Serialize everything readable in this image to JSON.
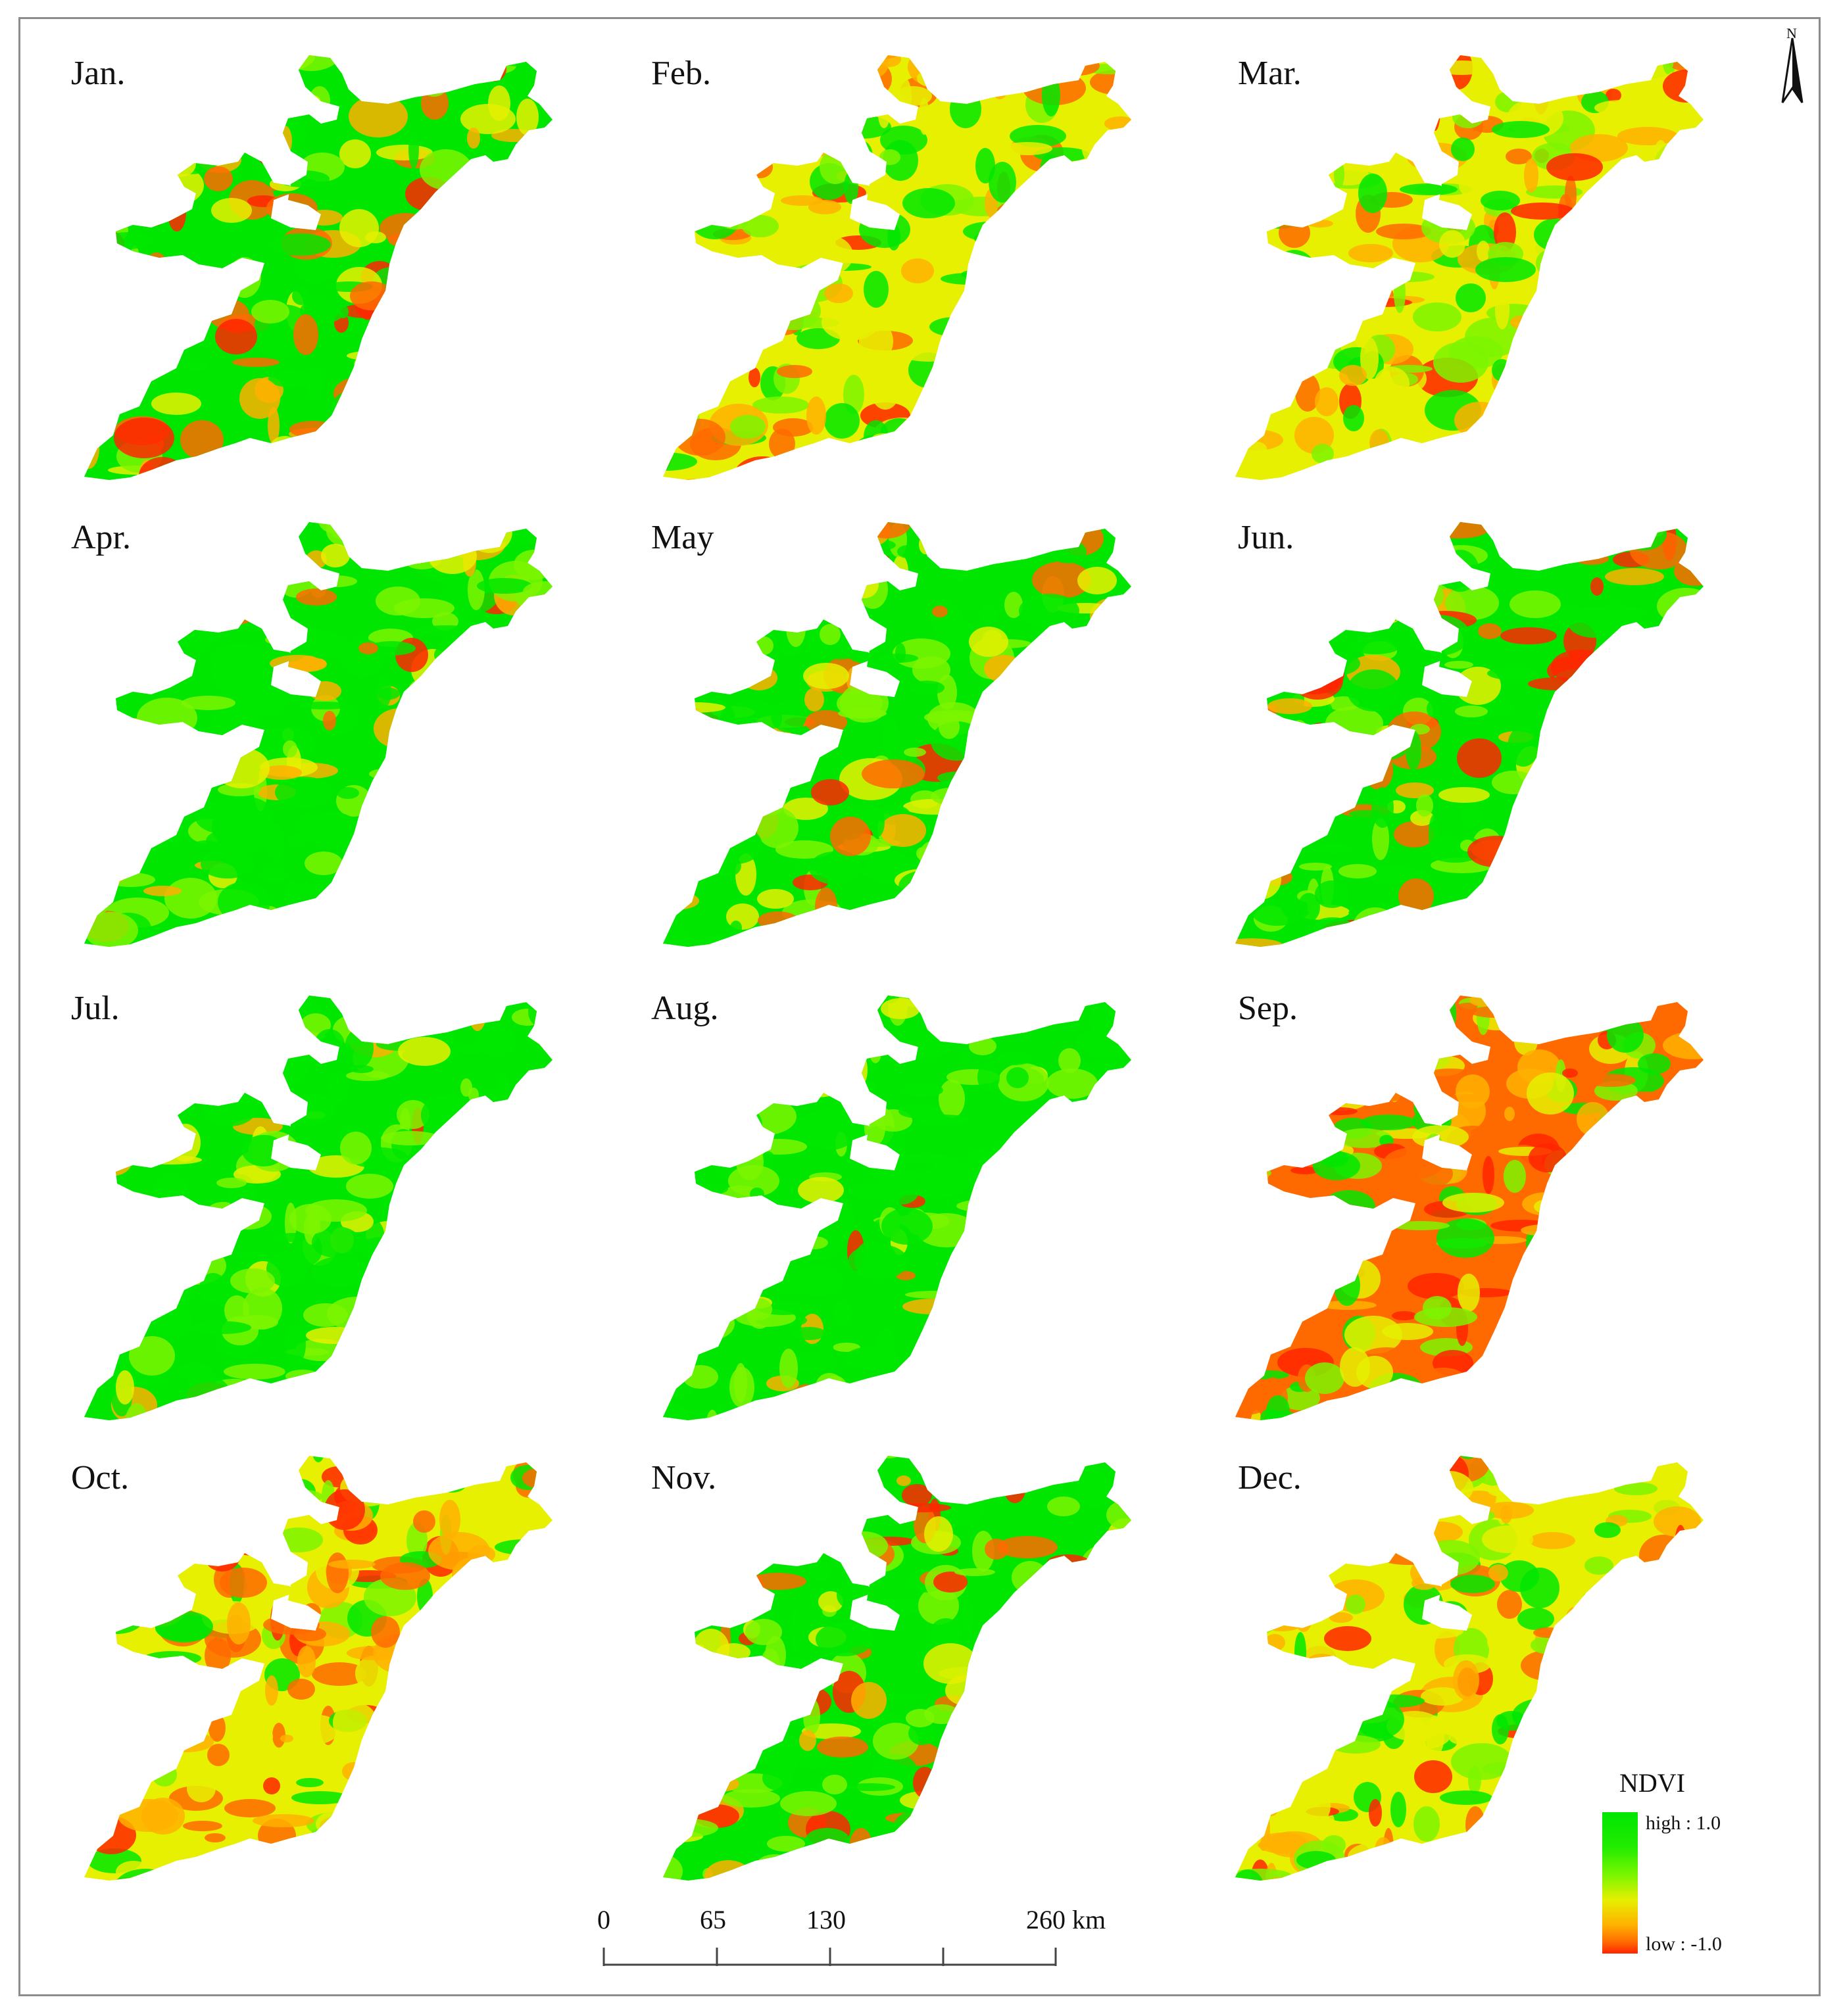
{
  "figure": {
    "panels": [
      {
        "label": "Jan.",
        "mix": [
          0.52,
          0.28,
          0.2
        ]
      },
      {
        "label": "Feb.",
        "mix": [
          0.42,
          0.33,
          0.25
        ]
      },
      {
        "label": "Mar.",
        "mix": [
          0.4,
          0.4,
          0.2
        ]
      },
      {
        "label": "Apr.",
        "mix": [
          0.72,
          0.22,
          0.06
        ]
      },
      {
        "label": "May",
        "mix": [
          0.62,
          0.22,
          0.16
        ]
      },
      {
        "label": "Jun.",
        "mix": [
          0.58,
          0.17,
          0.25
        ]
      },
      {
        "label": "Jul.",
        "mix": [
          0.84,
          0.12,
          0.04
        ]
      },
      {
        "label": "Aug.",
        "mix": [
          0.9,
          0.08,
          0.02
        ]
      },
      {
        "label": "Sep.",
        "mix": [
          0.32,
          0.28,
          0.4
        ]
      },
      {
        "label": "Oct.",
        "mix": [
          0.28,
          0.36,
          0.36
        ]
      },
      {
        "label": "Nov.",
        "mix": [
          0.55,
          0.18,
          0.27
        ]
      },
      {
        "label": "Dec.",
        "mix": [
          0.3,
          0.5,
          0.2
        ]
      }
    ],
    "legend": {
      "title": "NDVI",
      "high_label": "high : 1.0",
      "low_label": "low : -1.0",
      "colors": [
        "#00e600",
        "#7df500",
        "#e6f000",
        "#ffb000",
        "#ff6a00",
        "#ff2400"
      ]
    },
    "scale_bar": {
      "ticks": [
        "0",
        "65",
        "130",
        "260 km"
      ]
    },
    "north_arrow": {
      "letter": "N",
      "icon": "north-arrow-icon"
    }
  }
}
